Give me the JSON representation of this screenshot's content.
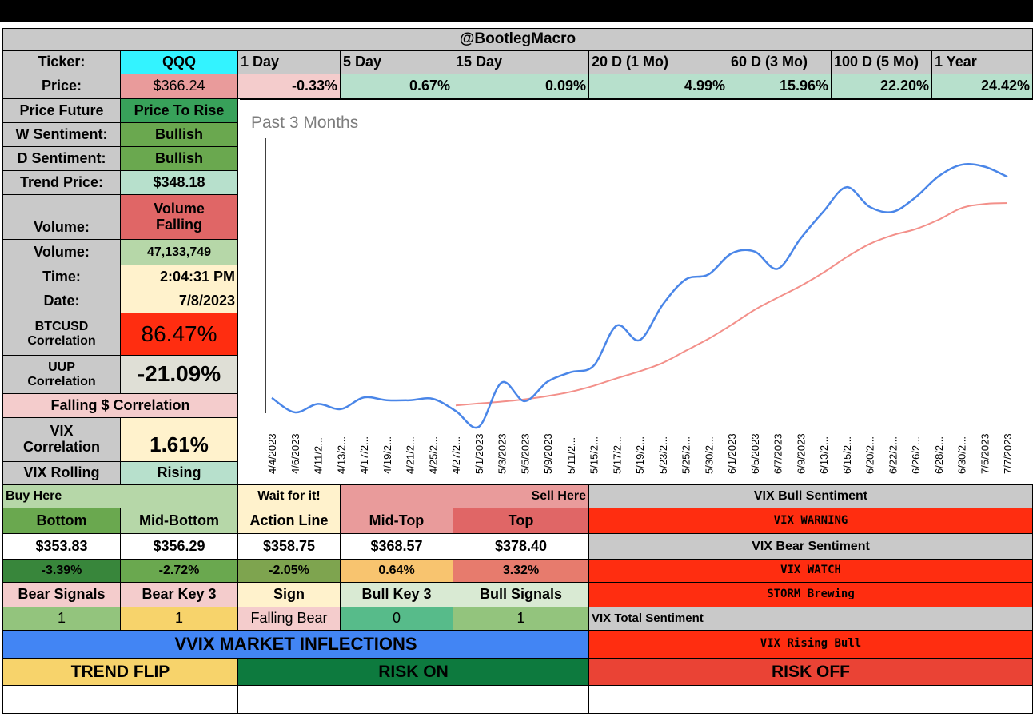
{
  "header": {
    "title": "@BootlegMacro"
  },
  "ticker": {
    "label": "Ticker:",
    "value": "QQQ"
  },
  "periods": [
    "1 Day",
    "5 Day",
    "15 Day",
    "20 D (1 Mo)",
    "60 D (3 Mo)",
    "100 D (5 Mo)",
    "1 Year"
  ],
  "price": {
    "label": "Price:",
    "value": "$366.24"
  },
  "returns": [
    "-0.33%",
    "0.67%",
    "0.09%",
    "4.99%",
    "15.96%",
    "22.20%",
    "24.42%"
  ],
  "left_panel": {
    "price_future": {
      "label": "Price Future",
      "value": "Price To Rise"
    },
    "w_sentiment": {
      "label": "W Sentiment:",
      "value": "Bullish"
    },
    "d_sentiment": {
      "label": "D Sentiment:",
      "value": "Bullish"
    },
    "trend_price": {
      "label": "Trend Price:",
      "value": "$348.18"
    },
    "volume_trend": {
      "label": "Volume:",
      "value": "Volume Falling"
    },
    "volume": {
      "label": "Volume:",
      "value": "47,133,749"
    },
    "time": {
      "label": "Time:",
      "value": "2:04:31 PM"
    },
    "date": {
      "label": "Date:",
      "value": "7/8/2023"
    },
    "btcusd": {
      "label": "BTCUSD Correlation",
      "value": "86.47%"
    },
    "uup": {
      "label": "UUP Correlation",
      "value": "-21.09%"
    },
    "falling_dollar": {
      "label": "Falling $ Correlation"
    },
    "vix_corr": {
      "label": "VIX Correlation",
      "value": "1.61%"
    },
    "vix_rolling": {
      "label": "VIX Rolling",
      "value": "Rising"
    }
  },
  "levels": {
    "buy_here": "Buy Here",
    "wait": "Wait for it!",
    "sell_here": "Sell Here",
    "headers": [
      "Bottom",
      "Mid-Bottom",
      "Action Line",
      "Mid-Top",
      "Top"
    ],
    "prices": [
      "$353.83",
      "$356.29",
      "$358.75",
      "$368.57",
      "$378.40"
    ],
    "pcts": [
      "-3.39%",
      "-2.72%",
      "-2.05%",
      "0.64%",
      "3.32%"
    ]
  },
  "signals": {
    "headers": [
      "Bear Signals",
      "Bear Key 3",
      "Sign",
      "Bull Key 3",
      "Bull Signals"
    ],
    "values": [
      "1",
      "1",
      "Falling Bear",
      "0",
      "1"
    ]
  },
  "vix": {
    "bull_sentiment_label": "VIX Bull Sentiment",
    "bull_sentiment_value": "VIX WARNING",
    "bear_sentiment_label": "VIX Bear Sentiment",
    "bear_sentiment_value": "VIX WATCH",
    "storm": "STORM Brewing",
    "total_label": "VIX Total Sentiment",
    "total_value": "VIX Rising Bull"
  },
  "inflections": {
    "title": "VVIX MARKET INFLECTIONS",
    "trend_flip": "TREND FLIP",
    "risk_on": "RISK ON",
    "risk_off": "RISK OFF"
  },
  "colors": {
    "gray": "#c9c9c9",
    "cyan": "#33f3ff",
    "pink": "#e99b9b",
    "lightpink": "#f4cccc",
    "mint": "#b7e0cc",
    "green": "#6aa84f",
    "red": "#e06666",
    "lightgreen": "#b6d7a8",
    "cream": "#fff2cc",
    "brightred": "#ff2d10",
    "darkgreen": "#38863b",
    "midgreen": "#7ea44f",
    "orange": "#f8c46f",
    "salmon": "#e77b6d",
    "yellow": "#f7d36b",
    "teal": "#57bb8a",
    "blue": "#4285f4",
    "forest": "#0d7a3e",
    "riskred": "#ea4335",
    "chartblue": "#4a86e8",
    "chartred": "#f3908a"
  },
  "chart_data": {
    "type": "line",
    "title": "Past 3 Months",
    "categories": [
      "4/4/2023",
      "4/6/2023",
      "4/11/2023",
      "4/13/2023",
      "4/17/2023",
      "4/19/2023",
      "4/21/2023",
      "4/25/2023",
      "4/27/2023",
      "5/1/2023",
      "5/3/2023",
      "5/5/2023",
      "5/9/2023",
      "5/11/2023",
      "5/15/2023",
      "5/17/2023",
      "5/19/2023",
      "5/23/2023",
      "5/25/2023",
      "5/30/2023",
      "6/1/2023",
      "6/5/2023",
      "6/7/2023",
      "6/9/2023",
      "6/13/2023",
      "6/15/2023",
      "6/20/2023",
      "6/22/2023",
      "6/26/2023",
      "6/28/2023",
      "6/30/2023",
      "7/5/2023",
      "7/7/2023"
    ],
    "tick_labels": [
      "4/4/2023",
      "4/6/2023",
      "4/11/2...",
      "4/13/2...",
      "4/17/2...",
      "4/19/2...",
      "4/21/2...",
      "4/25/2...",
      "4/27/2...",
      "5/1/2023",
      "5/3/2023",
      "5/5/2023",
      "5/9/2023",
      "5/11/2...",
      "5/15/2...",
      "5/17/2...",
      "5/19/2...",
      "5/23/2...",
      "5/25/2...",
      "5/30/2...",
      "6/1/2023",
      "6/5/2023",
      "6/7/2023",
      "6/9/2023",
      "6/13/2...",
      "6/15/2...",
      "6/20/2...",
      "6/22/2...",
      "6/26/2...",
      "6/28/2...",
      "6/30/2...",
      "7/5/2023",
      "7/7/2023"
    ],
    "ylim": [
      315,
      375
    ],
    "series": [
      {
        "values": [
          318.8,
          315.7,
          317.5,
          316.4,
          318.9,
          318.3,
          318.3,
          318.6,
          316.0,
          312.6,
          322.1,
          318.1,
          322.3,
          324.3,
          325.7,
          334.3,
          331.2,
          338.8,
          344.2,
          345.3,
          349.8,
          350.2,
          346.5,
          353.0,
          358.8,
          364.0,
          359.8,
          358.7,
          361.8,
          366.3,
          368.8,
          368.4,
          366.2
        ],
        "color": "#4a86e8"
      },
      {
        "values": [
          null,
          null,
          null,
          null,
          null,
          null,
          null,
          null,
          317.2,
          317.6,
          318.0,
          318.5,
          319.2,
          320.1,
          321.4,
          323.0,
          324.5,
          326.3,
          328.9,
          331.5,
          334.5,
          337.7,
          340.3,
          342.8,
          345.7,
          349.0,
          351.8,
          353.7,
          355.0,
          357.0,
          359.5,
          360.4,
          360.6
        ],
        "color": "#f3908a"
      }
    ],
    "grid": false
  }
}
